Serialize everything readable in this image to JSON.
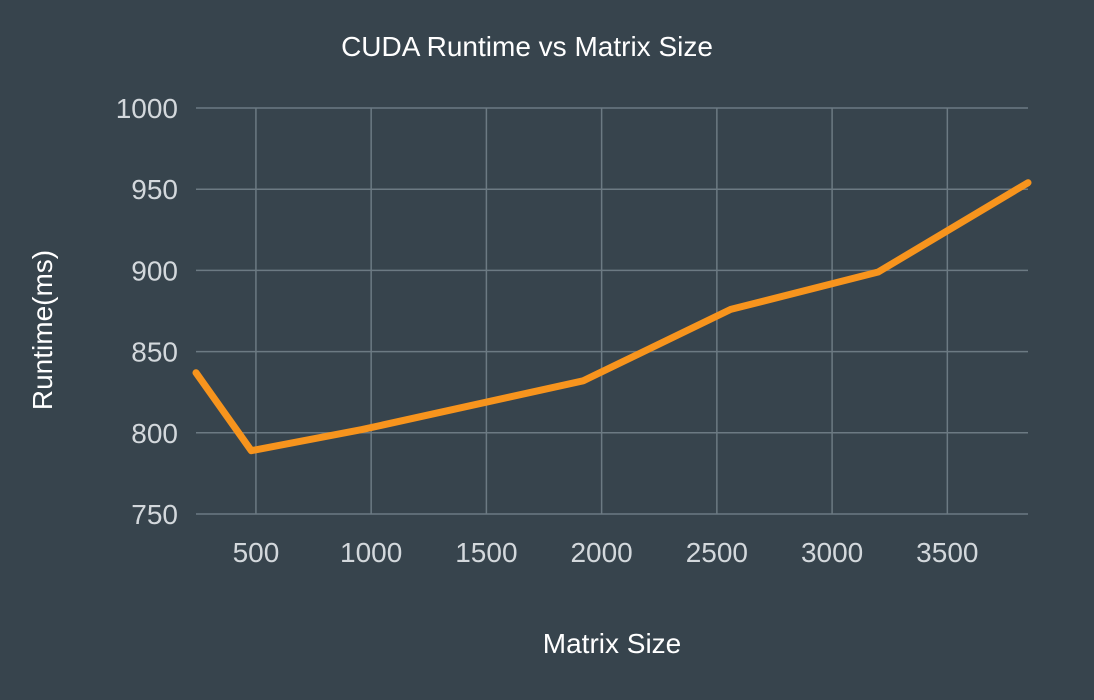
{
  "chart_data": {
    "type": "line",
    "title": "CUDA Runtime vs Matrix Size",
    "xlabel": "Matrix Size",
    "ylabel": "Runtime(ms)",
    "xlim": [
      240,
      3850
    ],
    "ylim": [
      750,
      1000
    ],
    "x_ticks": [
      500,
      1000,
      1500,
      2000,
      2500,
      3000,
      3500
    ],
    "y_ticks": [
      750,
      800,
      850,
      900,
      950,
      1000
    ],
    "grid": true,
    "legend": "none",
    "series": [
      {
        "color": "#f7941d",
        "x": [
          240,
          480,
          960,
          1600,
          1920,
          2560,
          3200,
          3850
        ],
        "y": [
          837,
          789,
          802,
          822,
          832,
          876,
          899,
          954
        ]
      }
    ]
  }
}
